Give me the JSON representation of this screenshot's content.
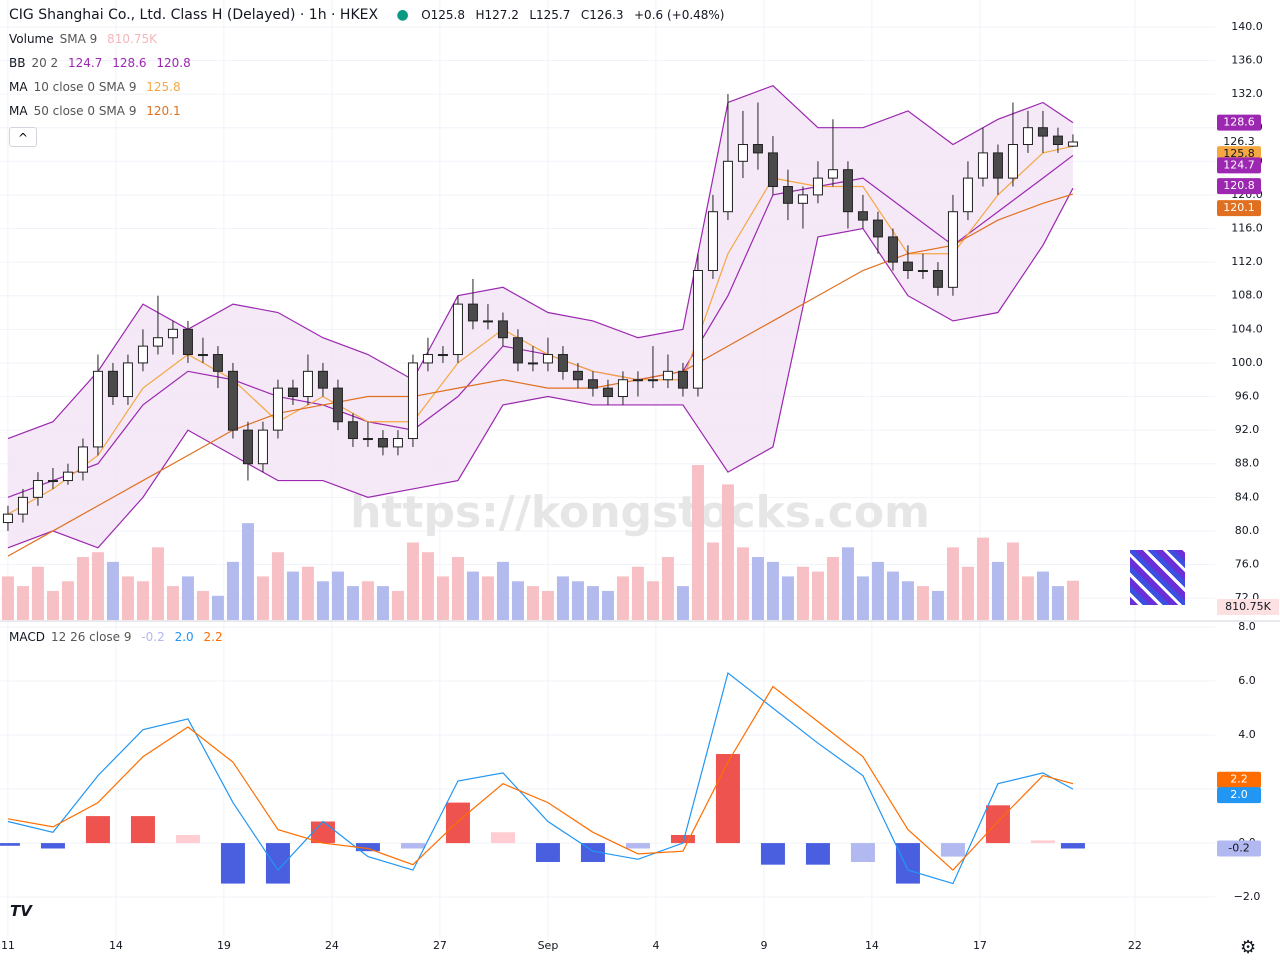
{
  "chart_data": {
    "type": "candlestick",
    "title": "CIG Shanghai Co., Ltd. Class H (Delayed) · 1h · HKEX",
    "ohlc_labels": [
      "O125.8",
      "H127.2",
      "L125.7",
      "C126.3",
      "+0.6 (+0.48%)"
    ],
    "watermark": "https://kongstocks.com",
    "legend": {
      "volume": {
        "name": "Volume",
        "params": "SMA 9",
        "values": [
          "810.75K"
        ]
      },
      "bb": {
        "name": "BB",
        "params": "20 2",
        "values": [
          "124.7",
          "128.6",
          "120.8"
        ]
      },
      "ma10": {
        "name": "MA",
        "params": "10 close 0 SMA 9",
        "values": [
          "125.8"
        ]
      },
      "ma50": {
        "name": "MA",
        "params": "50 close 0 SMA 9",
        "values": [
          "120.1"
        ]
      },
      "macd": {
        "name": "MACD",
        "params": "12 26 close 9",
        "values": [
          "-0.2",
          "2.0",
          "2.2"
        ]
      }
    },
    "xlim": [
      -0.53,
      80.47
    ],
    "xticks": [
      {
        "value": 0,
        "label": "11"
      },
      {
        "value": 7.2,
        "label": "14"
      },
      {
        "value": 14.4,
        "label": "19"
      },
      {
        "value": 21.6,
        "label": "24"
      },
      {
        "value": 28.8,
        "label": "27"
      },
      {
        "value": 36,
        "label": "Sep"
      },
      {
        "value": 43.2,
        "label": "4"
      },
      {
        "value": 50.4,
        "label": "9"
      },
      {
        "value": 57.6,
        "label": "14"
      },
      {
        "value": 64.8,
        "label": "17"
      },
      {
        "value": 75.13,
        "label": "22"
      }
    ],
    "ylim": [
      69.4,
      143.2
    ],
    "yticks": [
      {
        "value": 72,
        "label": "72.0"
      },
      {
        "value": 76,
        "label": "76.0"
      },
      {
        "value": 80,
        "label": "80.0"
      },
      {
        "value": 84,
        "label": "84.0"
      },
      {
        "value": 88,
        "label": "88.0"
      },
      {
        "value": 92,
        "label": "92.0"
      },
      {
        "value": 96,
        "label": "96.0"
      },
      {
        "value": 100,
        "label": "100.0"
      },
      {
        "value": 104,
        "label": "104.0"
      },
      {
        "value": 108,
        "label": "108.0"
      },
      {
        "value": 112,
        "label": "112.0"
      },
      {
        "value": 116,
        "label": "116.0"
      },
      {
        "value": 120,
        "label": "120.0"
      },
      {
        "value": 124,
        "label": "124.0"
      },
      {
        "value": 128,
        "label": "128.0"
      },
      {
        "value": 132,
        "label": "132.0"
      },
      {
        "value": 136,
        "label": "136.0"
      },
      {
        "value": 140,
        "label": "140.0"
      }
    ],
    "grid": true,
    "up_color": "#ffffff",
    "down_color": "#4a4a4a",
    "wick_color": "#222222",
    "candles": [
      [
        81,
        83,
        80,
        82
      ],
      [
        82,
        85,
        81,
        84
      ],
      [
        84,
        87,
        83,
        86
      ],
      [
        86,
        87.5,
        85,
        86
      ],
      [
        86,
        88,
        85.5,
        87
      ],
      [
        87,
        91,
        86,
        90
      ],
      [
        90,
        101,
        89,
        99
      ],
      [
        99,
        100,
        95,
        96
      ],
      [
        96,
        101,
        95,
        100
      ],
      [
        100,
        104,
        99,
        102
      ],
      [
        102,
        108,
        101,
        103
      ],
      [
        103,
        105,
        101,
        104
      ],
      [
        104,
        105,
        100,
        101
      ],
      [
        101,
        103,
        100,
        101
      ],
      [
        101,
        102,
        97,
        99
      ],
      [
        99,
        100,
        91,
        92
      ],
      [
        92,
        93,
        86,
        88
      ],
      [
        88,
        93,
        87,
        92
      ],
      [
        92,
        98,
        91,
        97
      ],
      [
        97,
        98,
        95,
        96
      ],
      [
        96,
        101,
        95,
        99
      ],
      [
        99,
        100,
        96,
        97
      ],
      [
        97,
        98,
        92,
        93
      ],
      [
        93,
        94,
        90,
        91
      ],
      [
        91,
        93,
        90,
        91
      ],
      [
        91,
        92,
        89,
        90
      ],
      [
        90,
        92,
        89,
        91
      ],
      [
        91,
        101,
        90,
        100
      ],
      [
        100,
        103,
        99,
        101
      ],
      [
        101,
        102,
        100,
        101
      ],
      [
        101,
        108,
        100,
        107
      ],
      [
        107,
        110,
        104,
        105
      ],
      [
        105,
        107,
        104,
        105
      ],
      [
        105,
        106,
        102,
        103
      ],
      [
        103,
        104,
        99,
        100
      ],
      [
        100,
        102,
        99,
        100
      ],
      [
        100,
        103,
        99,
        101
      ],
      [
        101,
        102,
        98,
        99
      ],
      [
        99,
        100,
        97,
        98
      ],
      [
        98,
        99,
        96,
        97
      ],
      [
        97,
        98,
        95,
        96
      ],
      [
        96,
        99,
        95,
        98
      ],
      [
        98,
        99,
        96,
        98
      ],
      [
        98,
        102,
        97,
        98
      ],
      [
        98,
        101,
        97,
        99
      ],
      [
        99,
        100,
        96,
        97
      ],
      [
        97,
        113,
        96,
        111
      ],
      [
        111,
        120,
        110,
        118
      ],
      [
        118,
        132,
        117,
        124
      ],
      [
        124,
        130,
        122,
        126
      ],
      [
        126,
        131,
        123,
        125
      ],
      [
        125,
        127,
        120,
        121
      ],
      [
        121,
        123,
        117,
        119
      ],
      [
        119,
        121,
        116,
        120
      ],
      [
        120,
        124,
        119,
        122
      ],
      [
        122,
        129,
        121,
        123
      ],
      [
        123,
        124,
        116,
        118
      ],
      [
        118,
        120,
        116,
        117
      ],
      [
        117,
        118,
        113,
        115
      ],
      [
        115,
        116,
        111,
        112
      ],
      [
        112,
        114,
        110,
        111
      ],
      [
        111,
        113,
        110,
        111
      ],
      [
        111,
        112,
        108,
        109
      ],
      [
        109,
        120,
        108,
        118
      ],
      [
        118,
        124,
        117,
        122
      ],
      [
        122,
        128,
        121,
        125
      ],
      [
        125,
        126,
        120,
        122
      ],
      [
        122,
        131,
        121,
        126
      ],
      [
        126,
        130,
        125,
        128
      ],
      [
        128,
        130,
        125,
        127
      ],
      [
        127,
        128,
        125,
        126
      ],
      [
        125.8,
        127.2,
        125.7,
        126.3
      ]
    ],
    "volume": {
      "up_color": "#f7c0c4",
      "down_color": "#b3bbee",
      "values": [
        900,
        700,
        1100,
        600,
        800,
        1300,
        1400,
        1200,
        900,
        800,
        1500,
        700,
        900,
        600,
        500,
        1200,
        2000,
        900,
        1400,
        1000,
        1100,
        800,
        1000,
        700,
        800,
        700,
        600,
        1600,
        1400,
        900,
        1300,
        1000,
        900,
        1200,
        800,
        700,
        600,
        900,
        800,
        700,
        600,
        900,
        1100,
        800,
        1300,
        700,
        3200,
        1600,
        2800,
        1500,
        1300,
        1200,
        900,
        1100,
        1000,
        1300,
        1500,
        900,
        1200,
        1000,
        800,
        700,
        600,
        1500,
        1100,
        1700,
        1200,
        1600,
        900,
        1000,
        700,
        810.75
      ]
    },
    "indicator_x": [
      0,
      3,
      6,
      9,
      12,
      15,
      18,
      21,
      24,
      27,
      30,
      33,
      36,
      39,
      42,
      45,
      48,
      51,
      54,
      57,
      60,
      63,
      66,
      69,
      71
    ],
    "overlays": [
      {
        "name": "BB upper",
        "color": "#9c27b0",
        "values": [
          91,
          93,
          99,
          107,
          104,
          107,
          106,
          103,
          101,
          98,
          108,
          109,
          106,
          105,
          103,
          104,
          131,
          133,
          128,
          128,
          130,
          126,
          129,
          131,
          128.6
        ]
      },
      {
        "name": "BB basis",
        "color": "#9c27b0",
        "values": [
          84,
          86,
          88,
          95,
          99,
          98,
          96,
          95,
          93,
          92,
          96,
          102,
          101,
          99,
          98,
          99,
          108,
          120,
          121,
          122,
          118,
          114,
          118,
          122,
          124.7
        ]
      },
      {
        "name": "BB lower",
        "color": "#9c27b0",
        "values": [
          78,
          80,
          78,
          84,
          92,
          89,
          86,
          86,
          84,
          85,
          86,
          95,
          96,
          95,
          95,
          95,
          87,
          90,
          115,
          116,
          108,
          105,
          106,
          114,
          120.8
        ]
      },
      {
        "name": "MA 10",
        "color": "#f5a742",
        "values": [
          82,
          85,
          89,
          97,
          101,
          98,
          93,
          96,
          93,
          93,
          100,
          104,
          101,
          99,
          98,
          98,
          113,
          122,
          121,
          121,
          113,
          113,
          120,
          125,
          125.8
        ]
      },
      {
        "name": "MA 50",
        "color": "#e0701f",
        "values": [
          77,
          80,
          83,
          86,
          89,
          92,
          94,
          95,
          96,
          96,
          97,
          98,
          97,
          97,
          98,
          99,
          102,
          105,
          108,
          111,
          113,
          114,
          117,
          119,
          120.1
        ]
      }
    ],
    "band_fill": "#f3e3f6",
    "macd": {
      "ylim": [
        -3.59,
        8.19
      ],
      "yticks": [
        {
          "value": -2,
          "label": "−2.0"
        },
        {
          "value": 0,
          "label": "0.0"
        },
        {
          "value": 2,
          "label": "2.0"
        },
        {
          "value": 4,
          "label": "4.0"
        },
        {
          "value": 6,
          "label": "6.0"
        },
        {
          "value": 8,
          "label": "8.0"
        }
      ],
      "series": [
        {
          "name": "MACD",
          "color": "#2196f3",
          "values": [
            0.8,
            0.4,
            2.5,
            4.2,
            4.6,
            1.5,
            -1.0,
            0.8,
            -0.5,
            -1.0,
            2.3,
            2.6,
            0.8,
            -0.3,
            -0.6,
            0.0,
            6.3,
            5.0,
            3.7,
            2.5,
            -1.0,
            -1.5,
            2.2,
            2.6,
            2.0
          ]
        },
        {
          "name": "Signal",
          "color": "#ff6d00",
          "values": [
            0.9,
            0.6,
            1.5,
            3.2,
            4.3,
            3.0,
            0.5,
            0.0,
            -0.2,
            -0.8,
            0.8,
            2.2,
            1.5,
            0.4,
            -0.4,
            -0.3,
            3.0,
            5.8,
            4.5,
            3.2,
            0.5,
            -1.0,
            0.8,
            2.5,
            2.2
          ]
        }
      ],
      "histogram": {
        "colors": [
          "#ef5350",
          "#ffcdd2",
          "#4a5fe0",
          "#b2b8f0"
        ],
        "values": [
          -0.1,
          -0.2,
          1.0,
          1.0,
          0.3,
          -1.5,
          -1.5,
          0.8,
          -0.3,
          -0.2,
          1.5,
          0.4,
          -0.7,
          -0.7,
          -0.2,
          0.3,
          3.3,
          -0.8,
          -0.8,
          -0.7,
          -1.5,
          -0.5,
          1.4,
          0.1,
          -0.2
        ]
      }
    }
  }
}
